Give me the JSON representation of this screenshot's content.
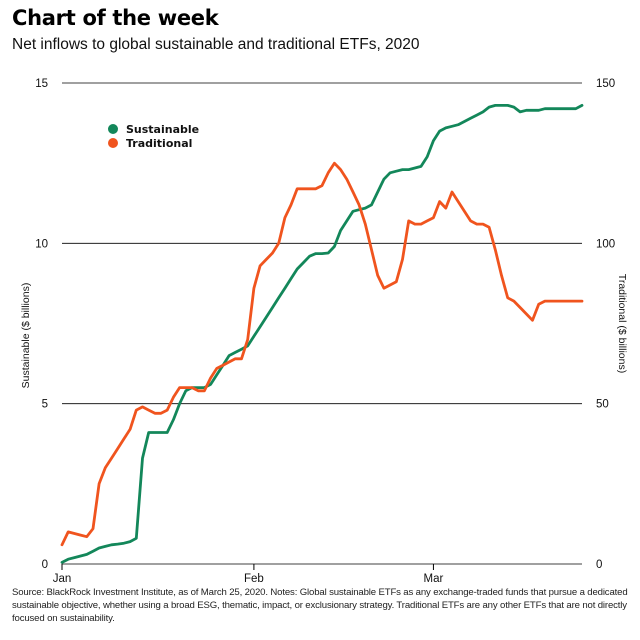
{
  "header": {
    "title": "Chart of the week",
    "subtitle": "Net inflows to global sustainable and traditional ETFs, 2020"
  },
  "footer": {
    "source": "Source: BlackRock Investment Institute, as of March 25, 2020. Notes: Global sustainable ETFs as any exchange-traded funds that pursue a dedicated sustainable objective, whether using a broad ESG, thematic, impact, or exclusionary strategy.  Traditional ETFs are any other ETFs that are not directly focused on sustainability."
  },
  "chart_data": {
    "type": "line",
    "title": "Chart of the week",
    "subtitle": "Net inflows to global sustainable and traditional ETFs, 2020",
    "xlabel": "",
    "ylabel": "Sustainable ($ billions)",
    "y2label": "Traditional ($ billions)",
    "xlim": [
      0,
      84
    ],
    "ylim": [
      0,
      15
    ],
    "y2lim": [
      0,
      150
    ],
    "yticks": [
      0,
      5,
      10,
      15
    ],
    "y2ticks": [
      0,
      50,
      100,
      150
    ],
    "xticks": [
      {
        "label": "Jan",
        "day": 0
      },
      {
        "label": "Feb",
        "day": 31
      },
      {
        "label": "Mar",
        "day": 60
      }
    ],
    "grid": "horizontal",
    "legend_position": "top-left",
    "series": [
      {
        "name": "Sustainable",
        "axis": "left",
        "color": "#13875a",
        "x": [
          0,
          1,
          2,
          3,
          4,
          5,
          6,
          7,
          8,
          9,
          10,
          11,
          12,
          13,
          14,
          15,
          16,
          17,
          18,
          19,
          20,
          21,
          22,
          23,
          24,
          25,
          26,
          27,
          28,
          29,
          30,
          31,
          32,
          33,
          34,
          35,
          36,
          37,
          38,
          39,
          40,
          41,
          42,
          43,
          44,
          45,
          46,
          47,
          48,
          49,
          50,
          51,
          52,
          53,
          54,
          55,
          56,
          57,
          58,
          59,
          60,
          61,
          62,
          63,
          64,
          65,
          66,
          67,
          68,
          69,
          70,
          71,
          72,
          73,
          74,
          75,
          76,
          77,
          78,
          79,
          80,
          81,
          82,
          83,
          84
        ],
        "values": [
          0.05,
          0.15,
          0.2,
          0.25,
          0.3,
          0.4,
          0.5,
          0.55,
          0.6,
          0.62,
          0.65,
          0.7,
          0.8,
          3.3,
          4.1,
          4.1,
          4.1,
          4.1,
          4.5,
          5.0,
          5.4,
          5.5,
          5.5,
          5.5,
          5.6,
          5.9,
          6.2,
          6.5,
          6.6,
          6.7,
          6.8,
          7.1,
          7.4,
          7.7,
          8.0,
          8.3,
          8.6,
          8.9,
          9.2,
          9.4,
          9.6,
          9.68,
          9.68,
          9.7,
          9.9,
          10.4,
          10.7,
          11.0,
          11.05,
          11.1,
          11.2,
          11.6,
          12.0,
          12.2,
          12.25,
          12.3,
          12.3,
          12.35,
          12.4,
          12.7,
          13.2,
          13.5,
          13.6,
          13.65,
          13.7,
          13.8,
          13.9,
          14.0,
          14.1,
          14.25,
          14.3,
          14.3,
          14.3,
          14.25,
          14.1,
          14.15,
          14.15,
          14.15,
          14.2,
          14.2,
          14.2,
          14.2,
          14.2,
          14.2,
          14.3
        ],
        "label_position": "legend"
      },
      {
        "name": "Traditional",
        "axis": "right",
        "color": "#f0541e",
        "x": [
          0,
          1,
          2,
          3,
          4,
          5,
          6,
          7,
          8,
          9,
          10,
          11,
          12,
          13,
          14,
          15,
          16,
          17,
          18,
          19,
          20,
          21,
          22,
          23,
          24,
          25,
          26,
          27,
          28,
          29,
          30,
          31,
          32,
          33,
          34,
          35,
          36,
          37,
          38,
          39,
          40,
          41,
          42,
          43,
          44,
          45,
          46,
          47,
          48,
          49,
          50,
          51,
          52,
          53,
          54,
          55,
          56,
          57,
          58,
          59,
          60,
          61,
          62,
          63,
          64,
          65,
          66,
          67,
          68,
          69,
          70,
          71,
          72,
          73,
          74,
          75,
          76,
          77,
          78,
          79,
          80,
          81,
          82,
          83,
          84
        ],
        "values": [
          6,
          10,
          9.5,
          9,
          8.5,
          11,
          25,
          30,
          33,
          36,
          39,
          42,
          48,
          49,
          48,
          47,
          47,
          48,
          52,
          55,
          55,
          55,
          54,
          54,
          58,
          61,
          62,
          63,
          64,
          64,
          70,
          86,
          93,
          95,
          97,
          100,
          108,
          112,
          117,
          117,
          117,
          117,
          118,
          122,
          125,
          123,
          120,
          116,
          112,
          106,
          98,
          90,
          86,
          87,
          88,
          95,
          107,
          106,
          106,
          107,
          108,
          113,
          111,
          116,
          113,
          110,
          107,
          106,
          106,
          105,
          98,
          90,
          83,
          82,
          80,
          78,
          76,
          81,
          82,
          82,
          82,
          82,
          82,
          82,
          82
        ],
        "label_position": "legend"
      }
    ]
  }
}
